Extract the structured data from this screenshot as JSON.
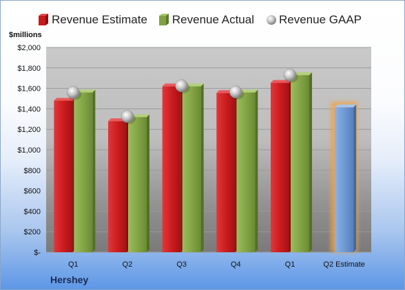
{
  "chart_data": {
    "type": "bar",
    "title": "",
    "company": "Hershey",
    "units_label": "$millions",
    "categories": [
      "Q1",
      "Q2",
      "Q3",
      "Q4",
      "Q1",
      "Q2 Estimate"
    ],
    "series": [
      {
        "name": "Revenue Estimate",
        "type": "bar",
        "values": [
          1480,
          1280,
          1620,
          1555,
          1655,
          null
        ]
      },
      {
        "name": "Revenue Actual",
        "type": "bar",
        "values": [
          1560,
          1320,
          1620,
          1560,
          1730,
          null
        ]
      },
      {
        "name": "Revenue GAAP",
        "type": "marker",
        "values": [
          1560,
          1325,
          1625,
          1565,
          1730,
          null
        ]
      },
      {
        "name": "Q2 Estimate",
        "type": "bar",
        "values": [
          null,
          null,
          null,
          null,
          null,
          1415
        ]
      }
    ],
    "ylim": [
      0,
      2000
    ],
    "y_ticks": [
      0,
      200,
      400,
      600,
      800,
      1000,
      1200,
      1400,
      1600,
      1800,
      2000
    ],
    "y_tick_labels": [
      "$-",
      "$200",
      "$400",
      "$600",
      "$800",
      "$1,000",
      "$1,200",
      "$1,400",
      "$1,600",
      "$1,800",
      "$2,000"
    ],
    "grid": true,
    "legend_position": "top",
    "colors": {
      "estimate": "#c8191c",
      "actual": "#82a243",
      "gaap": "#b8b8b8",
      "q2_estimate": "#6f9ad6",
      "q2_glow": "#f4a23c"
    }
  }
}
